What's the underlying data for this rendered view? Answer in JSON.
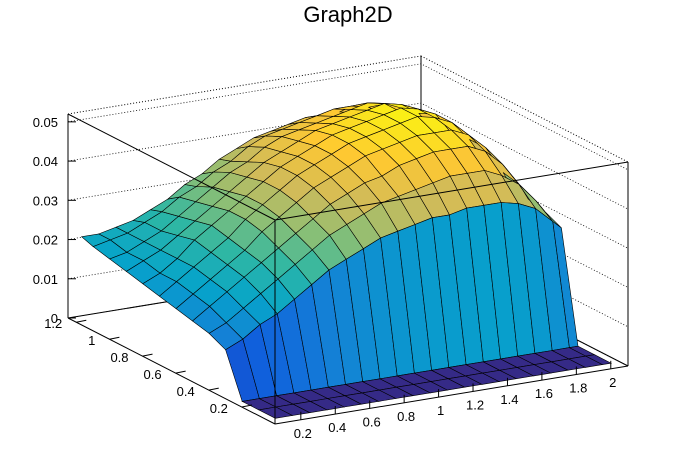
{
  "chart_data": {
    "type": "surface3d",
    "title": "Graph2D",
    "x_ticks": [
      "0.2",
      "0.4",
      "0.6",
      "0.8",
      "1",
      "1.2",
      "1.4",
      "1.6",
      "1.8",
      "2"
    ],
    "y_ticks": [
      "0.2",
      "0.4",
      "0.6",
      "0.8",
      "1",
      "1.2"
    ],
    "z_ticks": [
      "0",
      "0.01",
      "0.02",
      "0.03",
      "0.04",
      "0.05"
    ],
    "xlim": [
      0.05,
      2.1
    ],
    "ylim": [
      0.0,
      1.25
    ],
    "zlim": [
      0,
      0.052
    ],
    "palette": [
      "#352a87",
      "#0f5cdd",
      "#1481d6",
      "#06a4ca",
      "#2eb7a4",
      "#87bf77",
      "#d1bb59",
      "#fec832",
      "#f9fb0e"
    ],
    "surface": {
      "description_values": "z on an x-y grid; z=0 for x > 2.05 region drop",
      "x_grid": [
        0.1,
        0.2,
        0.3,
        0.4,
        0.5,
        0.6,
        0.7,
        0.8,
        0.9,
        1.0,
        1.1,
        1.2,
        1.3,
        1.4,
        1.5,
        1.6,
        1.7,
        1.8,
        1.9,
        2.0,
        2.05
      ],
      "y_grid": [
        0.05,
        0.15,
        0.25,
        0.35,
        0.45,
        0.55,
        0.65,
        0.75,
        0.85,
        0.95,
        1.05,
        1.15,
        1.22
      ],
      "z_rows": [
        [
          0.0,
          0.0,
          0.0,
          0.0,
          0.0,
          0.0,
          0.0,
          0.0,
          0.0,
          0.0,
          0.0,
          0.0,
          0.0,
          0.0,
          0.0,
          0.0,
          0.0,
          0.0,
          0.0,
          0.0,
          0.0
        ],
        [
          0.0,
          0.0,
          0.0,
          0.0,
          0.0,
          0.0,
          0.0,
          0.0,
          0.0,
          0.0,
          0.0,
          0.0,
          0.0,
          0.0,
          0.0,
          0.0,
          0.0,
          0.0,
          0.0,
          0.0,
          0.0
        ],
        [
          0.0,
          0.0,
          0.0,
          0.0,
          0.0,
          0.0,
          0.0,
          0.0,
          0.0,
          0.0,
          0.0,
          0.0,
          0.0,
          0.0,
          0.0,
          0.0,
          0.0,
          0.0,
          0.0,
          0.0,
          0.0
        ],
        [
          0.011,
          0.013,
          0.016,
          0.018,
          0.021,
          0.024,
          0.027,
          0.029,
          0.031,
          0.033,
          0.034,
          0.035,
          0.036,
          0.036,
          0.037,
          0.037,
          0.037,
          0.036,
          0.034,
          0.03,
          0.028
        ],
        [
          0.013,
          0.015,
          0.018,
          0.021,
          0.024,
          0.027,
          0.03,
          0.033,
          0.035,
          0.037,
          0.039,
          0.04,
          0.041,
          0.042,
          0.043,
          0.043,
          0.043,
          0.041,
          0.038,
          0.033,
          0.03
        ],
        [
          0.014,
          0.017,
          0.02,
          0.023,
          0.026,
          0.029,
          0.032,
          0.035,
          0.038,
          0.04,
          0.042,
          0.043,
          0.045,
          0.046,
          0.047,
          0.047,
          0.047,
          0.045,
          0.041,
          0.035,
          0.031
        ],
        [
          0.015,
          0.018,
          0.021,
          0.024,
          0.027,
          0.031,
          0.034,
          0.037,
          0.04,
          0.042,
          0.044,
          0.046,
          0.047,
          0.048,
          0.049,
          0.049,
          0.049,
          0.047,
          0.043,
          0.036,
          0.032
        ],
        [
          0.016,
          0.019,
          0.022,
          0.025,
          0.028,
          0.032,
          0.035,
          0.038,
          0.041,
          0.043,
          0.045,
          0.047,
          0.048,
          0.049,
          0.05,
          0.051,
          0.05,
          0.048,
          0.043,
          0.036,
          0.031
        ],
        [
          0.017,
          0.019,
          0.022,
          0.026,
          0.029,
          0.032,
          0.035,
          0.038,
          0.041,
          0.043,
          0.045,
          0.047,
          0.048,
          0.049,
          0.05,
          0.051,
          0.05,
          0.048,
          0.042,
          0.034,
          0.029
        ],
        [
          0.018,
          0.02,
          0.022,
          0.025,
          0.028,
          0.031,
          0.034,
          0.037,
          0.04,
          0.042,
          0.044,
          0.046,
          0.047,
          0.048,
          0.049,
          0.05,
          0.049,
          0.046,
          0.04,
          0.032,
          0.027
        ],
        [
          0.019,
          0.02,
          0.022,
          0.024,
          0.027,
          0.03,
          0.033,
          0.036,
          0.038,
          0.041,
          0.043,
          0.044,
          0.045,
          0.046,
          0.047,
          0.048,
          0.047,
          0.044,
          0.037,
          0.029,
          0.024
        ],
        [
          0.02,
          0.021,
          0.022,
          0.024,
          0.026,
          0.029,
          0.031,
          0.034,
          0.036,
          0.039,
          0.041,
          0.042,
          0.043,
          0.044,
          0.045,
          0.045,
          0.044,
          0.041,
          0.034,
          0.026,
          0.021
        ],
        [
          0.021,
          0.021,
          0.022,
          0.023,
          0.025,
          0.027,
          0.03,
          0.032,
          0.035,
          0.037,
          0.039,
          0.04,
          0.041,
          0.042,
          0.042,
          0.042,
          0.041,
          0.038,
          0.031,
          0.023,
          0.018
        ]
      ]
    }
  }
}
